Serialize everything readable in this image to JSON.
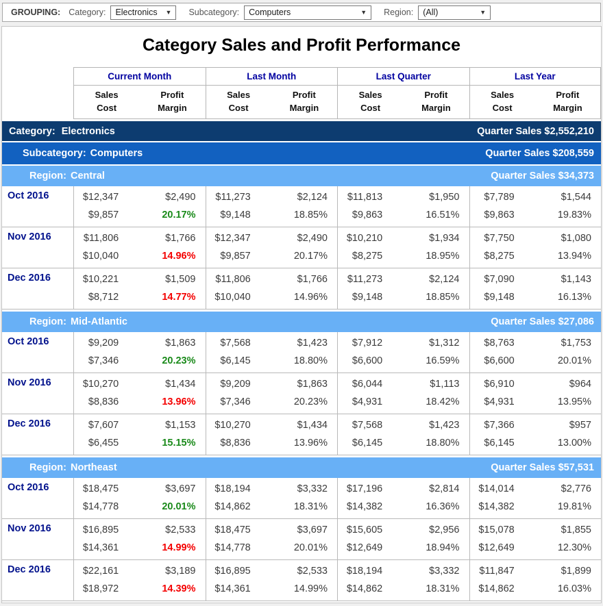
{
  "colors": {
    "category_bg": "#0d3c70",
    "subcategory_bg": "#1261c0",
    "region_bg": "#68b0f6",
    "positive": "#1a8a1a",
    "negative": "#f40000",
    "header_text": "#0000a0",
    "row_label": "#00118c",
    "value_text": "#3b3b3b"
  },
  "grouping_bar": {
    "label": "GROUPING:",
    "arrow": "▼",
    "filters": [
      {
        "name": "category",
        "label": "Category:",
        "value": "Electronics"
      },
      {
        "name": "subcategory",
        "label": "Subcategory:",
        "value": "Computers"
      },
      {
        "name": "region",
        "label": "Region:",
        "value": "(All)"
      }
    ]
  },
  "report": {
    "title": "Category Sales and Profit Performance",
    "header": {
      "groups": [
        "Current Month",
        "Last Month",
        "Last Quarter",
        "Last Year"
      ],
      "sales": [
        "Sales",
        "Cost"
      ],
      "profit": [
        "Profit",
        "Margin"
      ]
    },
    "quarter_sales_label": "Quarter Sales",
    "category": {
      "prefix": "Category:",
      "name": "Electronics",
      "quarter_sales": "$2,552,210"
    },
    "subcategory": {
      "prefix": "Subcategory:",
      "name": "Computers",
      "quarter_sales": "$208,559"
    },
    "regions": [
      {
        "prefix": "Region:",
        "name": "Central",
        "quarter_sales": "$34,373",
        "rows": [
          {
            "month": "Oct 2016",
            "cells": [
              {
                "sales": "$12,347",
                "cost": "$9,857",
                "profit": "$2,490",
                "margin": "20.17%",
                "margin_color": "green"
              },
              {
                "sales": "$11,273",
                "cost": "$9,148",
                "profit": "$2,124",
                "margin": "18.85%"
              },
              {
                "sales": "$11,813",
                "cost": "$9,863",
                "profit": "$1,950",
                "margin": "16.51%"
              },
              {
                "sales": "$7,789",
                "cost": "$9,863",
                "profit": "$1,544",
                "margin": "19.83%"
              }
            ]
          },
          {
            "month": "Nov 2016",
            "cells": [
              {
                "sales": "$11,806",
                "cost": "$10,040",
                "profit": "$1,766",
                "margin": "14.96%",
                "margin_color": "red"
              },
              {
                "sales": "$12,347",
                "cost": "$9,857",
                "profit": "$2,490",
                "margin": "20.17%"
              },
              {
                "sales": "$10,210",
                "cost": "$8,275",
                "profit": "$1,934",
                "margin": "18.95%"
              },
              {
                "sales": "$7,750",
                "cost": "$8,275",
                "profit": "$1,080",
                "margin": "13.94%"
              }
            ]
          },
          {
            "month": "Dec 2016",
            "cells": [
              {
                "sales": "$10,221",
                "cost": "$8,712",
                "profit": "$1,509",
                "margin": "14.77%",
                "margin_color": "red"
              },
              {
                "sales": "$11,806",
                "cost": "$10,040",
                "profit": "$1,766",
                "margin": "14.96%"
              },
              {
                "sales": "$11,273",
                "cost": "$9,148",
                "profit": "$2,124",
                "margin": "18.85%"
              },
              {
                "sales": "$7,090",
                "cost": "$9,148",
                "profit": "$1,143",
                "margin": "16.13%"
              }
            ]
          }
        ]
      },
      {
        "prefix": "Region:",
        "name": "Mid-Atlantic",
        "quarter_sales": "$27,086",
        "rows": [
          {
            "month": "Oct 2016",
            "cells": [
              {
                "sales": "$9,209",
                "cost": "$7,346",
                "profit": "$1,863",
                "margin": "20.23%",
                "margin_color": "green"
              },
              {
                "sales": "$7,568",
                "cost": "$6,145",
                "profit": "$1,423",
                "margin": "18.80%"
              },
              {
                "sales": "$7,912",
                "cost": "$6,600",
                "profit": "$1,312",
                "margin": "16.59%"
              },
              {
                "sales": "$8,763",
                "cost": "$6,600",
                "profit": "$1,753",
                "margin": "20.01%"
              }
            ]
          },
          {
            "month": "Nov 2016",
            "cells": [
              {
                "sales": "$10,270",
                "cost": "$8,836",
                "profit": "$1,434",
                "margin": "13.96%",
                "margin_color": "red"
              },
              {
                "sales": "$9,209",
                "cost": "$7,346",
                "profit": "$1,863",
                "margin": "20.23%"
              },
              {
                "sales": "$6,044",
                "cost": "$4,931",
                "profit": "$1,113",
                "margin": "18.42%"
              },
              {
                "sales": "$6,910",
                "cost": "$4,931",
                "profit": "$964",
                "margin": "13.95%"
              }
            ]
          },
          {
            "month": "Dec 2016",
            "cells": [
              {
                "sales": "$7,607",
                "cost": "$6,455",
                "profit": "$1,153",
                "margin": "15.15%",
                "margin_color": "green"
              },
              {
                "sales": "$10,270",
                "cost": "$8,836",
                "profit": "$1,434",
                "margin": "13.96%"
              },
              {
                "sales": "$7,568",
                "cost": "$6,145",
                "profit": "$1,423",
                "margin": "18.80%"
              },
              {
                "sales": "$7,366",
                "cost": "$6,145",
                "profit": "$957",
                "margin": "13.00%"
              }
            ]
          }
        ]
      },
      {
        "prefix": "Region:",
        "name": "Northeast",
        "quarter_sales": "$57,531",
        "rows": [
          {
            "month": "Oct 2016",
            "cells": [
              {
                "sales": "$18,475",
                "cost": "$14,778",
                "profit": "$3,697",
                "margin": "20.01%",
                "margin_color": "green"
              },
              {
                "sales": "$18,194",
                "cost": "$14,862",
                "profit": "$3,332",
                "margin": "18.31%"
              },
              {
                "sales": "$17,196",
                "cost": "$14,382",
                "profit": "$2,814",
                "margin": "16.36%"
              },
              {
                "sales": "$14,014",
                "cost": "$14,382",
                "profit": "$2,776",
                "margin": "19.81%"
              }
            ]
          },
          {
            "month": "Nov 2016",
            "cells": [
              {
                "sales": "$16,895",
                "cost": "$14,361",
                "profit": "$2,533",
                "margin": "14.99%",
                "margin_color": "red"
              },
              {
                "sales": "$18,475",
                "cost": "$14,778",
                "profit": "$3,697",
                "margin": "20.01%"
              },
              {
                "sales": "$15,605",
                "cost": "$12,649",
                "profit": "$2,956",
                "margin": "18.94%"
              },
              {
                "sales": "$15,078",
                "cost": "$12,649",
                "profit": "$1,855",
                "margin": "12.30%"
              }
            ]
          },
          {
            "month": "Dec 2016",
            "cells": [
              {
                "sales": "$22,161",
                "cost": "$18,972",
                "profit": "$3,189",
                "margin": "14.39%",
                "margin_color": "red"
              },
              {
                "sales": "$16,895",
                "cost": "$14,361",
                "profit": "$2,533",
                "margin": "14.99%"
              },
              {
                "sales": "$18,194",
                "cost": "$14,862",
                "profit": "$3,332",
                "margin": "18.31%"
              },
              {
                "sales": "$11,847",
                "cost": "$14,862",
                "profit": "$1,899",
                "margin": "16.03%"
              }
            ]
          }
        ]
      }
    ]
  }
}
